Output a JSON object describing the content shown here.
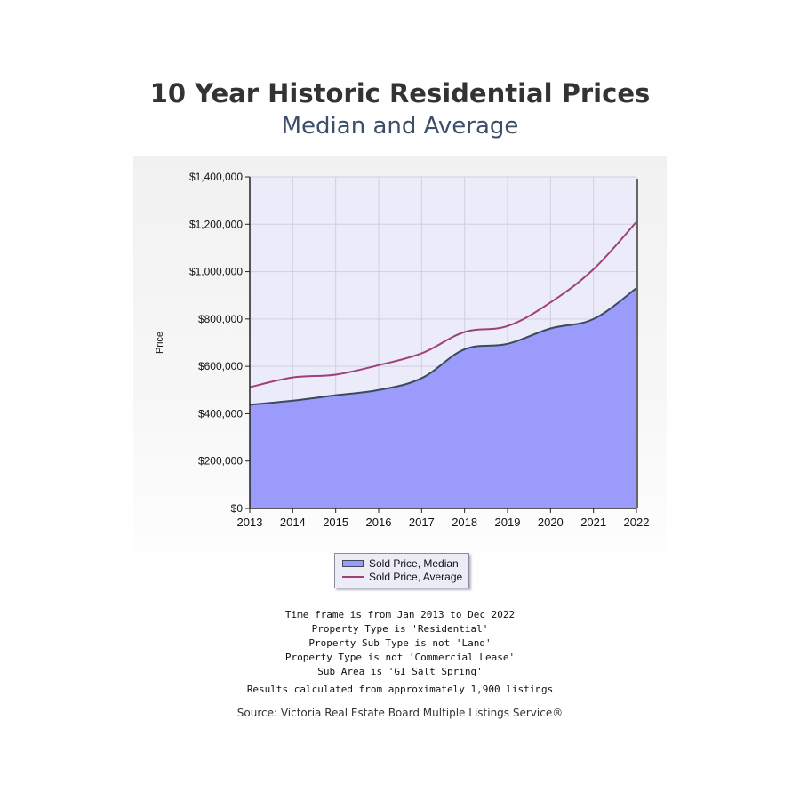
{
  "title": "10 Year Historic Residential Prices",
  "subtitle": "Median and Average",
  "chart_data": {
    "type": "area",
    "categories": [
      "2013",
      "2014",
      "2015",
      "2016",
      "2017",
      "2018",
      "2019",
      "2020",
      "2021",
      "2022"
    ],
    "series": [
      {
        "name": "Sold Price, Median",
        "style": "area",
        "values": [
          438000,
          455000,
          478000,
          500000,
          550000,
          672000,
          695000,
          760000,
          800000,
          930000
        ]
      },
      {
        "name": "Sold Price, Average",
        "style": "line",
        "values": [
          512000,
          553000,
          565000,
          605000,
          655000,
          745000,
          770000,
          870000,
          1010000,
          1210000
        ]
      }
    ],
    "ylabel": "Price",
    "xlabel": "",
    "ylim": [
      0,
      1400000
    ],
    "yticks": [
      0,
      200000,
      400000,
      600000,
      800000,
      1000000,
      1200000,
      1400000
    ],
    "ytick_labels": [
      "$0",
      "$200,000",
      "$400,000",
      "$600,000",
      "$800,000",
      "$1,000,000",
      "$1,200,000",
      "$1,400,000"
    ],
    "grid": true,
    "legend_position": "bottom-center",
    "colors": {
      "median_fill": "#9b9bfc",
      "median_line": "#3c4a5a",
      "average_line": "#a0407a",
      "plot_bg": "#ebebfa",
      "grid": "#cfcfdf"
    }
  },
  "notes": [
    "Time frame is from Jan 2013 to Dec 2022",
    "Property Type is 'Residential'",
    "Property Sub Type is not 'Land'",
    "Property Type is not 'Commercial Lease'",
    "Sub Area is 'GI Salt Spring'"
  ],
  "results_note": "Results calculated from approximately 1,900 listings",
  "source": "Source: Victoria Real Estate Board Multiple Listings Service®"
}
